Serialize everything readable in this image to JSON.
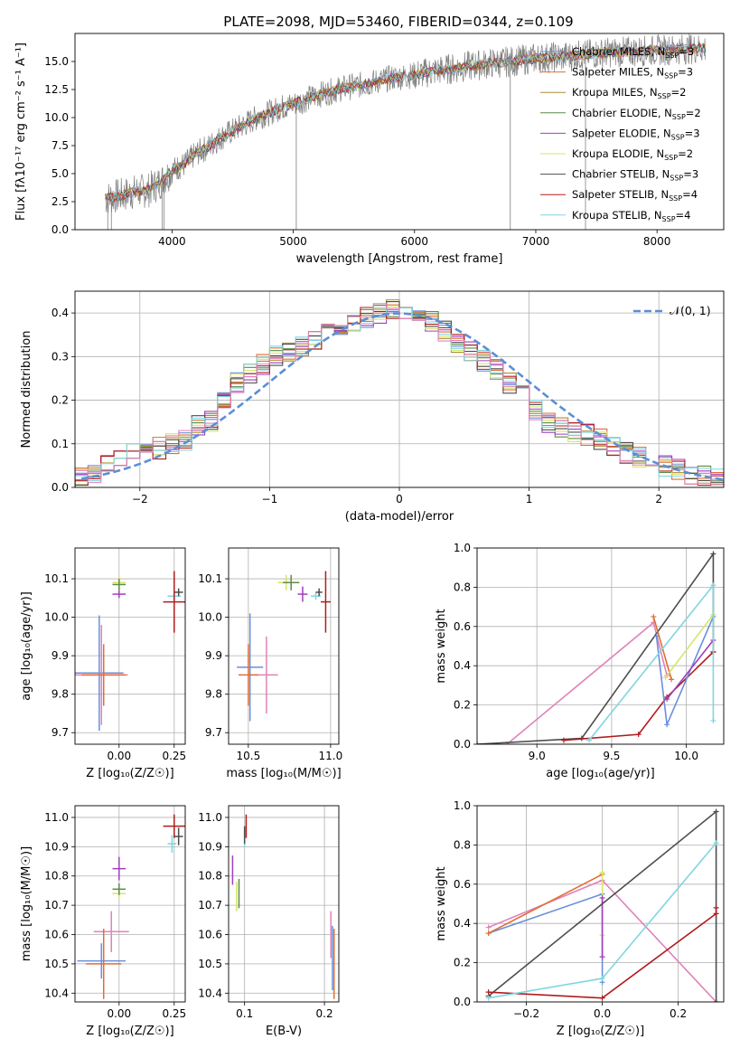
{
  "figure": {
    "title": "PLATE=2098, MJD=53460, FIBERID=0344, z=0.109",
    "colors": {
      "Chabrier MILES": "#6a8fdc",
      "Salpeter MILES": "#e06d36",
      "Kroupa MILES": "#ad8b2e",
      "Chabrier ELODIE": "#5c8c45",
      "Salpeter ELODIE": "#a03fbf",
      "Kroupa ELODIE": "#d8e36b",
      "Chabrier STELIB": "#4d4d4d",
      "Salpeter STELIB": "#b01c1c",
      "Kroupa STELIB": "#7fd6e0",
      "pink": "#e083b8",
      "spectrum": "#808080",
      "normal": "#5b8fd6"
    }
  },
  "chart_data": [
    {
      "id": "spectrum",
      "type": "line",
      "title": "PLATE=2098, MJD=53460, FIBERID=0344, z=0.109",
      "xlabel": "wavelength [Angstrom, rest frame]",
      "ylabel": "Flux [fλ10⁻¹⁷ erg cm⁻² s⁻¹ A⁻¹]",
      "xlim": [
        3200,
        8550
      ],
      "ylim": [
        0,
        17.5
      ],
      "xticks": [
        4000,
        5000,
        6000,
        7000,
        8000
      ],
      "yticks": [
        0.0,
        2.5,
        5.0,
        7.5,
        10.0,
        12.5,
        15.0
      ],
      "grid": false,
      "legend_position": "upper right",
      "legend": [
        {
          "label": "Chabrier MILES, N",
          "sub": "SSP",
          "tail": "=3",
          "color": "#6a8fdc"
        },
        {
          "label": "Salpeter MILES, N",
          "sub": "SSP",
          "tail": "=3",
          "color": "#e06d36"
        },
        {
          "label": "Kroupa MILES, N",
          "sub": "SSP",
          "tail": "=2",
          "color": "#ad8b2e"
        },
        {
          "label": "Chabrier ELODIE, N",
          "sub": "SSP",
          "tail": "=2",
          "color": "#5c8c45"
        },
        {
          "label": "Salpeter ELODIE, N",
          "sub": "SSP",
          "tail": "=3",
          "color": "#a03fbf"
        },
        {
          "label": "Kroupa ELODIE, N",
          "sub": "SSP",
          "tail": "=2",
          "color": "#d8e36b"
        },
        {
          "label": "Chabrier STELIB, N",
          "sub": "SSP",
          "tail": "=3",
          "color": "#4d4d4d"
        },
        {
          "label": "Salpeter STELIB, N",
          "sub": "SSP",
          "tail": "=4",
          "color": "#b01c1c"
        },
        {
          "label": "Kroupa STELIB, N",
          "sub": "SSP",
          "tail": "=4",
          "color": "#7fd6e0"
        }
      ],
      "data_trend": {
        "x": [
          3450,
          3600,
          3700,
          3800,
          3900,
          4000,
          4100,
          4200,
          4300,
          4400,
          4500,
          4600,
          4700,
          4800,
          4900,
          5000,
          5200,
          5400,
          5600,
          5800,
          6000,
          6200,
          6400,
          6600,
          6800,
          7000,
          7200,
          7400,
          7600,
          7800,
          8000,
          8200,
          8400
        ],
        "y": [
          2.8,
          3.1,
          3.4,
          3.5,
          4.2,
          5.3,
          5.8,
          6.8,
          7.4,
          8.2,
          8.8,
          9.4,
          10.0,
          10.4,
          10.9,
          11.2,
          12.0,
          12.6,
          13.0,
          13.5,
          13.8,
          14.2,
          14.5,
          14.8,
          15.0,
          15.3,
          15.4,
          15.6,
          15.8,
          15.9,
          16.0,
          16.1,
          16.2
        ]
      },
      "spikes": [
        {
          "x": 3470,
          "y0": 0
        },
        {
          "x": 3500,
          "y0": 0
        },
        {
          "x": 3920,
          "y0": 0
        },
        {
          "x": 3935,
          "y0": 0
        },
        {
          "x": 5025,
          "y0": 0
        },
        {
          "x": 6790,
          "y0": 0
        },
        {
          "x": 7410,
          "y0": 0
        }
      ]
    },
    {
      "id": "residuals",
      "type": "step",
      "xlabel": "(data-model)/error",
      "ylabel": "Normed distribution",
      "xlim": [
        -2.5,
        2.5
      ],
      "ylim": [
        0,
        0.45
      ],
      "xticks": [
        -2,
        -1,
        0,
        1,
        2
      ],
      "yticks": [
        0.0,
        0.1,
        0.2,
        0.3,
        0.4
      ],
      "grid": true,
      "legend_position": "upper right",
      "legend_label": "𝒩(0, 1)",
      "reference_curve": {
        "type": "normal",
        "mu": 0,
        "sigma": 1,
        "style": "dashed"
      },
      "bins": [
        -2.5,
        -2.4,
        -2.3,
        -2.2,
        -2.1,
        -2.0,
        -1.9,
        -1.8,
        -1.7,
        -1.6,
        -1.5,
        -1.4,
        -1.3,
        -1.2,
        -1.1,
        -1.0,
        -0.9,
        -0.8,
        -0.7,
        -0.6,
        -0.5,
        -0.4,
        -0.3,
        -0.2,
        -0.1,
        0.0,
        0.1,
        0.2,
        0.3,
        0.4,
        0.5,
        0.6,
        0.7,
        0.8,
        0.9,
        1.0,
        1.1,
        1.2,
        1.3,
        1.4,
        1.5,
        1.6,
        1.7,
        1.8,
        1.9,
        2.0,
        2.1,
        2.2,
        2.3,
        2.4
      ],
      "base_hist": [
        0.025,
        0.03,
        0.05,
        0.07,
        0.08,
        0.085,
        0.09,
        0.1,
        0.11,
        0.14,
        0.15,
        0.2,
        0.24,
        0.26,
        0.28,
        0.3,
        0.31,
        0.32,
        0.34,
        0.35,
        0.37,
        0.38,
        0.39,
        0.4,
        0.41,
        0.41,
        0.4,
        0.38,
        0.36,
        0.33,
        0.31,
        0.29,
        0.27,
        0.24,
        0.21,
        0.18,
        0.15,
        0.14,
        0.13,
        0.12,
        0.11,
        0.09,
        0.08,
        0.07,
        0.06,
        0.05,
        0.04,
        0.03,
        0.025,
        0.02
      ],
      "series": [
        {
          "name": "Chabrier MILES",
          "color": "#6a8fdc",
          "offset": 0
        },
        {
          "name": "Salpeter MILES",
          "color": "#e06d36",
          "offset": 1
        },
        {
          "name": "Kroupa MILES",
          "color": "#ad8b2e",
          "offset": 2
        },
        {
          "name": "Chabrier ELODIE",
          "color": "#5c8c45",
          "offset": 3
        },
        {
          "name": "Salpeter ELODIE",
          "color": "#a03fbf",
          "offset": 4
        },
        {
          "name": "Kroupa ELODIE",
          "color": "#d8e36b",
          "offset": 5
        },
        {
          "name": "Chabrier STELIB",
          "color": "#4d4d4d",
          "offset": 6
        },
        {
          "name": "Salpeter STELIB",
          "color": "#b01c1c",
          "offset": 7
        },
        {
          "name": "Kroupa STELIB",
          "color": "#7fd6e0",
          "offset": 8
        },
        {
          "name": "pink",
          "color": "#e083b8",
          "offset": 9
        }
      ]
    },
    {
      "id": "age_vs_Z",
      "type": "errorbar",
      "xlabel": "Z [log₁₀(Z/Z☉)]",
      "ylabel": "age  [log₁₀(age/yr)]",
      "xlim": [
        -0.2,
        0.3
      ],
      "ylim": [
        9.67,
        10.18
      ],
      "xticks": [
        0.0,
        0.25
      ],
      "xticklabels": [
        "0.00",
        "0.25"
      ],
      "yticks": [
        9.7,
        9.8,
        9.9,
        10.0,
        10.1
      ],
      "grid": true,
      "points": [
        {
          "x": -0.09,
          "y": 9.855,
          "xerr": 0.11,
          "yerr": 0.15,
          "color": "#6a8fdc"
        },
        {
          "x": -0.08,
          "y": 9.85,
          "xerr": 0.12,
          "yerr": 0.13,
          "color": "#e083b8"
        },
        {
          "x": -0.07,
          "y": 9.85,
          "xerr": 0.1,
          "yerr": 0.08,
          "color": "#e06d36"
        },
        {
          "x": 0.0,
          "y": 10.09,
          "xerr": 0.03,
          "yerr": 0.02,
          "color": "#d8e36b"
        },
        {
          "x": 0.0,
          "y": 10.085,
          "xerr": 0.03,
          "yerr": 0.015,
          "color": "#5c8c45"
        },
        {
          "x": 0.0,
          "y": 10.06,
          "xerr": 0.03,
          "yerr": 0.01,
          "color": "#a03fbf"
        },
        {
          "x": 0.25,
          "y": 10.055,
          "xerr": 0.03,
          "yerr": 0.01,
          "color": "#7fd6e0"
        },
        {
          "x": 0.27,
          "y": 10.065,
          "xerr": 0.02,
          "yerr": 0.01,
          "color": "#4d4d4d"
        },
        {
          "x": 0.25,
          "y": 10.04,
          "xerr": 0.05,
          "yerr": 0.08,
          "color": "#b01c1c"
        }
      ]
    },
    {
      "id": "age_vs_mass",
      "type": "errorbar",
      "xlabel": "mass [log₁₀(M/M☉)]",
      "ylabel": "",
      "xlim": [
        10.38,
        11.05
      ],
      "ylim": [
        9.67,
        10.18
      ],
      "xticks": [
        10.5,
        11.0
      ],
      "xticklabels": [
        "10.5",
        "11.0"
      ],
      "yticks": [
        9.7,
        9.8,
        9.9,
        10.0,
        10.1
      ],
      "grid": true,
      "points": [
        {
          "x": 10.51,
          "y": 9.87,
          "xerr": 0.08,
          "yerr": 0.14,
          "color": "#6a8fdc"
        },
        {
          "x": 10.61,
          "y": 9.85,
          "xerr": 0.07,
          "yerr": 0.1,
          "color": "#e083b8"
        },
        {
          "x": 10.5,
          "y": 9.85,
          "xerr": 0.06,
          "yerr": 0.08,
          "color": "#e06d36"
        },
        {
          "x": 10.73,
          "y": 10.09,
          "xerr": 0.05,
          "yerr": 0.02,
          "color": "#d8e36b"
        },
        {
          "x": 10.76,
          "y": 10.09,
          "xerr": 0.05,
          "yerr": 0.02,
          "color": "#5c8c45"
        },
        {
          "x": 10.83,
          "y": 10.06,
          "xerr": 0.03,
          "yerr": 0.02,
          "color": "#a03fbf"
        },
        {
          "x": 10.91,
          "y": 10.055,
          "xerr": 0.03,
          "yerr": 0.01,
          "color": "#7fd6e0"
        },
        {
          "x": 10.93,
          "y": 10.065,
          "xerr": 0.02,
          "yerr": 0.01,
          "color": "#4d4d4d"
        },
        {
          "x": 10.97,
          "y": 10.04,
          "xerr": 0.03,
          "yerr": 0.08,
          "color": "#b01c1c"
        }
      ]
    },
    {
      "id": "weight_vs_age",
      "type": "line",
      "xlabel": "age  [log₁₀(age/yr)]",
      "ylabel": "mass weight",
      "xlim": [
        8.6,
        10.25
      ],
      "ylim": [
        0,
        1.0
      ],
      "xticks": [
        9.0,
        9.5,
        10.0
      ],
      "xticklabels": [
        "9.0",
        "9.5",
        "10.0"
      ],
      "yticks": [
        0.0,
        0.2,
        0.4,
        0.6,
        0.8,
        1.0
      ],
      "grid": true,
      "series": [
        {
          "name": "pink",
          "color": "#e083b8",
          "x": [
            8.8,
            9.78,
            9.87
          ],
          "y": [
            0.0,
            0.62,
            0.35
          ]
        },
        {
          "name": "Chabrier STELIB",
          "color": "#4d4d4d",
          "x": [
            8.6,
            9.3,
            10.18,
            10.18
          ],
          "y": [
            0.0,
            0.03,
            0.97,
            0.47
          ]
        },
        {
          "name": "Salpeter STELIB",
          "color": "#b01c1c",
          "x": [
            9.18,
            9.68,
            9.87,
            10.18
          ],
          "y": [
            0.02,
            0.05,
            0.24,
            0.47
          ]
        },
        {
          "name": "Chabrier MILES",
          "color": "#6a8fdc",
          "x": [
            9.8,
            9.87,
            10.18
          ],
          "y": [
            0.55,
            0.1,
            0.65
          ]
        },
        {
          "name": "Salpeter MILES",
          "color": "#e06d36",
          "x": [
            9.78,
            9.9
          ],
          "y": [
            0.65,
            0.33
          ]
        },
        {
          "name": "Kroupa ELODIE",
          "color": "#d8e36b",
          "x": [
            9.86,
            10.18
          ],
          "y": [
            0.34,
            0.66
          ]
        },
        {
          "name": "Salpeter ELODIE",
          "color": "#a03fbf",
          "x": [
            9.87,
            10.18
          ],
          "y": [
            0.23,
            0.53
          ]
        },
        {
          "name": "Kroupa STELIB",
          "color": "#7fd6e0",
          "x": [
            9.35,
            10.18,
            10.18
          ],
          "y": [
            0.02,
            0.81,
            0.12
          ]
        }
      ]
    },
    {
      "id": "mass_vs_Z",
      "type": "errorbar",
      "xlabel": "Z [log₁₀(Z/Z☉)]",
      "ylabel": "mass [log₁₀(M/M☉)]",
      "xlim": [
        -0.2,
        0.3
      ],
      "ylim": [
        10.37,
        11.04
      ],
      "xticks": [
        0.0,
        0.25
      ],
      "xticklabels": [
        "0.00",
        "0.25"
      ],
      "yticks": [
        10.4,
        10.5,
        10.6,
        10.7,
        10.8,
        10.9,
        11.0
      ],
      "grid": true,
      "points": [
        {
          "x": -0.08,
          "y": 10.51,
          "xerr": 0.11,
          "yerr": 0.06,
          "color": "#6a8fdc"
        },
        {
          "x": -0.035,
          "y": 10.61,
          "xerr": 0.08,
          "yerr": 0.07,
          "color": "#e083b8"
        },
        {
          "x": -0.07,
          "y": 10.5,
          "xerr": 0.08,
          "yerr": 0.12,
          "color": "#e06d36"
        },
        {
          "x": 0.0,
          "y": 10.74,
          "xerr": 0.03,
          "yerr": 0.02,
          "color": "#d8e36b"
        },
        {
          "x": 0.0,
          "y": 10.755,
          "xerr": 0.03,
          "yerr": 0.02,
          "color": "#5c8c45"
        },
        {
          "x": 0.0,
          "y": 10.825,
          "xerr": 0.03,
          "yerr": 0.04,
          "color": "#a03fbf"
        },
        {
          "x": 0.24,
          "y": 10.91,
          "xerr": 0.02,
          "yerr": 0.03,
          "color": "#7fd6e0"
        },
        {
          "x": 0.27,
          "y": 10.935,
          "xerr": 0.02,
          "yerr": 0.03,
          "color": "#4d4d4d"
        },
        {
          "x": 0.25,
          "y": 10.97,
          "xerr": 0.05,
          "yerr": 0.04,
          "color": "#b01c1c"
        }
      ]
    },
    {
      "id": "mass_vs_ebv",
      "type": "errorbar",
      "xlabel": "E(B-V)",
      "ylabel": "",
      "xlim": [
        0.08,
        0.218
      ],
      "ylim": [
        10.37,
        11.04
      ],
      "xticks": [
        0.1,
        0.2
      ],
      "xticklabels": [
        "0.1",
        "0.2"
      ],
      "yticks": [
        10.4,
        10.5,
        10.6,
        10.7,
        10.8,
        10.9,
        11.0
      ],
      "grid": true,
      "points": [
        {
          "x": 0.085,
          "y": 10.82,
          "xerr": 0.0,
          "yerr": 0.05,
          "color": "#a03fbf"
        },
        {
          "x": 0.09,
          "y": 10.73,
          "xerr": 0.0,
          "yerr": 0.05,
          "color": "#d8e36b"
        },
        {
          "x": 0.093,
          "y": 10.74,
          "xerr": 0.0,
          "yerr": 0.05,
          "color": "#5c8c45"
        },
        {
          "x": 0.1,
          "y": 10.93,
          "xerr": 0.0,
          "yerr": 0.03,
          "color": "#7fd6e0"
        },
        {
          "x": 0.1,
          "y": 10.94,
          "xerr": 0.0,
          "yerr": 0.03,
          "color": "#4d4d4d"
        },
        {
          "x": 0.102,
          "y": 10.97,
          "xerr": 0.0,
          "yerr": 0.04,
          "color": "#b01c1c"
        },
        {
          "x": 0.208,
          "y": 10.6,
          "xerr": 0.0,
          "yerr": 0.08,
          "color": "#e083b8"
        },
        {
          "x": 0.21,
          "y": 10.52,
          "xerr": 0.0,
          "yerr": 0.11,
          "color": "#6a8fdc"
        },
        {
          "x": 0.212,
          "y": 10.5,
          "xerr": 0.0,
          "yerr": 0.12,
          "color": "#e06d36"
        }
      ]
    },
    {
      "id": "weight_vs_Z",
      "type": "line",
      "xlabel": "Z [log₁₀(Z/Z☉)]",
      "ylabel": "mass weight",
      "xlim": [
        -0.33,
        0.32
      ],
      "ylim": [
        0,
        1.0
      ],
      "xticks": [
        -0.2,
        0.0,
        0.2
      ],
      "xticklabels": [
        "−0.2",
        "0.0",
        "0.2"
      ],
      "yticks": [
        0.0,
        0.2,
        0.4,
        0.6,
        0.8,
        1.0
      ],
      "grid": true,
      "series": [
        {
          "name": "pink",
          "color": "#e083b8",
          "x": [
            -0.3,
            0.0,
            0.3
          ],
          "y": [
            0.38,
            0.62,
            0.0
          ]
        },
        {
          "name": "Chabrier MILES",
          "color": "#6a8fdc",
          "x": [
            -0.3,
            0.0,
            0.0
          ],
          "y": [
            0.35,
            0.55,
            0.1
          ]
        },
        {
          "name": "Salpeter MILES",
          "color": "#e06d36",
          "x": [
            -0.3,
            0.0
          ],
          "y": [
            0.35,
            0.65
          ]
        },
        {
          "name": "Kroupa ELODIE",
          "color": "#d8e36b",
          "x": [
            0.0,
            0.0
          ],
          "y": [
            0.66,
            0.34
          ]
        },
        {
          "name": "Salpeter ELODIE",
          "color": "#a03fbf",
          "x": [
            0.0,
            0.0
          ],
          "y": [
            0.53,
            0.23
          ]
        },
        {
          "name": "Chabrier STELIB",
          "color": "#4d4d4d",
          "x": [
            -0.3,
            0.3,
            0.3
          ],
          "y": [
            0.03,
            0.97,
            0.0
          ]
        },
        {
          "name": "Salpeter STELIB",
          "color": "#b01c1c",
          "x": [
            -0.3,
            0.0,
            0.3,
            0.3
          ],
          "y": [
            0.05,
            0.02,
            0.45,
            0.48
          ]
        },
        {
          "name": "Kroupa STELIB",
          "color": "#7fd6e0",
          "x": [
            -0.3,
            0.0,
            0.3
          ],
          "y": [
            0.02,
            0.12,
            0.81
          ]
        }
      ]
    }
  ]
}
